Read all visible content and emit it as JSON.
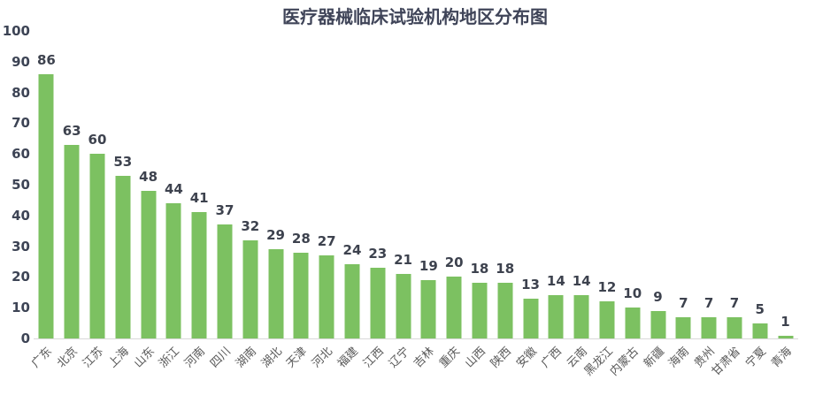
{
  "chart_data": {
    "type": "bar",
    "title": "医疗器械临床试验机构地区分布图",
    "categories": [
      "广东",
      "北京",
      "江苏",
      "上海",
      "山东",
      "浙江",
      "河南",
      "四川",
      "湖南",
      "湖北",
      "天津",
      "河北",
      "福建",
      "江西",
      "辽宁",
      "吉林",
      "重庆",
      "山西",
      "陕西",
      "安徽",
      "广西",
      "云南",
      "黑龙江",
      "内蒙古",
      "新疆",
      "海南",
      "贵州",
      "甘肃省",
      "宁夏",
      "青海"
    ],
    "values": [
      86,
      63,
      60,
      53,
      48,
      44,
      41,
      37,
      32,
      29,
      28,
      27,
      24,
      23,
      21,
      19,
      20,
      18,
      18,
      13,
      14,
      14,
      12,
      10,
      9,
      7,
      7,
      7,
      5,
      1
    ],
    "xlabel": "",
    "ylabel": "",
    "ylim": [
      0,
      100
    ],
    "yticks": [
      100,
      90,
      80,
      70,
      60,
      50,
      40,
      30,
      20,
      10,
      0
    ],
    "grid": false,
    "legend_position": "none",
    "data_labels": true,
    "colors": {
      "bar": "#7CC161",
      "title": "#3F4458",
      "value_label": "#3D424E",
      "y_tick": "#3D4455",
      "x_tick": "#595959",
      "axis_line": "#D9D9D9"
    }
  }
}
